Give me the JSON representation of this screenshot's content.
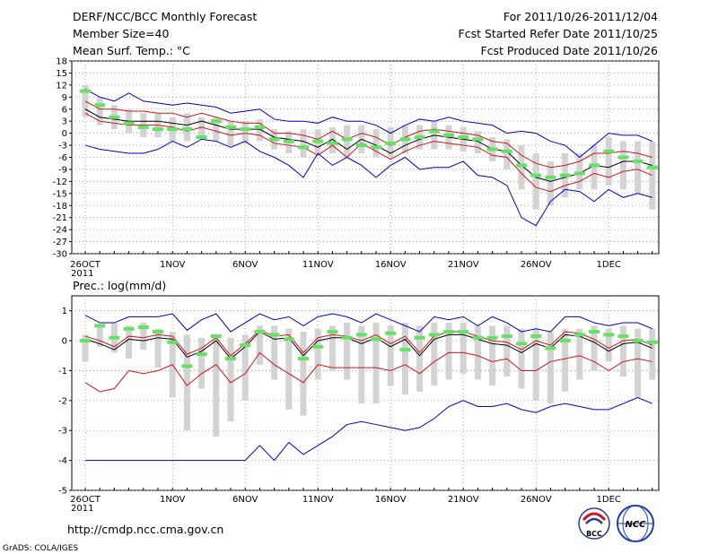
{
  "header": {
    "title": "DERF/NCC/BCC Monthly Forecast",
    "member_size": "Member Size=40",
    "variable": "Mean Surf. Temp.: °C",
    "forecast_period": "For 2011/10/26-2011/12/04",
    "start_date": "Fcst Started Refer Date 2011/10/25",
    "produced_date": "Fcst Produced Date 2011/10/26"
  },
  "footer": {
    "url": "http://cmdp.ncc.cma.gov.cn",
    "grads_label": "GrADS: COLA/IGES",
    "logo_bcc_text": "BCC",
    "logo_ncc_text": "NCC"
  },
  "colors": {
    "box": "#d3d3d3",
    "median": "#66e066",
    "mean": "#000000",
    "inner_band": "#d0141e",
    "outer_band": "#0000c8",
    "grid": "#9a9a9a"
  },
  "chart_data": [
    {
      "type": "line",
      "title": "Mean Surf. Temp.: °C",
      "xlabel": "",
      "ylabel": "",
      "ylim": [
        -30,
        18
      ],
      "yticks": [
        18,
        15,
        12,
        9,
        6,
        3,
        0,
        -3,
        -6,
        -9,
        -12,
        -15,
        -18,
        -21,
        -24,
        -27,
        -30
      ],
      "grid": true,
      "x_tick_labels": [
        "26OCT\n2011",
        "1NOV",
        "6NOV",
        "11NOV",
        "16NOV",
        "21NOV",
        "26NOV",
        "1DEC"
      ],
      "x_tick_days": [
        0,
        6,
        11,
        16,
        21,
        26,
        31,
        36
      ],
      "n_days": 40,
      "series": [
        {
          "name": "mean",
          "color": "#000000",
          "values": [
            6,
            4,
            3.5,
            3,
            3,
            3,
            2.5,
            2,
            3,
            2,
            1,
            1,
            1,
            -1,
            -1.5,
            -2,
            -3.5,
            -1.5,
            -4,
            -1.5,
            -3,
            -5,
            -3,
            -1.5,
            -0.5,
            -1,
            -1.5,
            -2,
            -4,
            -4.5,
            -8,
            -11,
            -12,
            -11,
            -10,
            -8,
            -8.5,
            -7,
            -7,
            -8
          ]
        },
        {
          "name": "upper_inner",
          "color": "#d0141e",
          "values": [
            8,
            6,
            6,
            5.5,
            5.5,
            5,
            5,
            4,
            5,
            4,
            3,
            2.5,
            2.5,
            0,
            0,
            -0.5,
            -1.5,
            0.5,
            -1.5,
            0,
            -1,
            -3,
            -1,
            0.5,
            1,
            0.5,
            0,
            -0.5,
            -2,
            -2.5,
            -5.5,
            -7.5,
            -8.5,
            -8,
            -7,
            -5,
            -5,
            -4.5,
            -5,
            -6
          ]
        },
        {
          "name": "lower_inner",
          "color": "#d0141e",
          "values": [
            5,
            3,
            2.5,
            2,
            2,
            2,
            1.5,
            0.5,
            1.5,
            0.5,
            -0.5,
            0,
            -0.5,
            -2.5,
            -3,
            -3.5,
            -5.5,
            -3,
            -6,
            -2.5,
            -4.5,
            -6.5,
            -4.5,
            -3,
            -2,
            -2.5,
            -3,
            -3.5,
            -5.5,
            -6,
            -10,
            -13.5,
            -14.5,
            -13,
            -12,
            -10,
            -11,
            -9.5,
            -9,
            -10.5
          ]
        },
        {
          "name": "upper_outer",
          "color": "#0000c8",
          "values": [
            11,
            9,
            8,
            10,
            8,
            7.5,
            7,
            7.5,
            7,
            6.5,
            5,
            5.5,
            6,
            3.5,
            3,
            3,
            2.5,
            4,
            3,
            3,
            2,
            0,
            2,
            3.5,
            3,
            4,
            3,
            2.5,
            2,
            0,
            0.5,
            0,
            -2,
            -3,
            -6,
            -3,
            0,
            -0.5,
            -0.5,
            -2
          ]
        },
        {
          "name": "lower_outer",
          "color": "#0000c8",
          "values": [
            -3,
            -4,
            -4.5,
            -5,
            -5,
            -4,
            -2,
            -3.5,
            -1.5,
            -2,
            -3.5,
            -2,
            -4.5,
            -6,
            -8,
            -11,
            -5,
            -8,
            -6,
            -8,
            -11,
            -8,
            -6,
            -9,
            -8.5,
            -8.5,
            -7,
            -10.5,
            -11,
            -13,
            -21,
            -23,
            -17,
            -14,
            -14.5,
            -17,
            -14,
            -16,
            -15,
            -16
          ]
        }
      ],
      "boxes": [
        {
          "day": 0,
          "high": 12,
          "low": 4,
          "median": 10.5
        },
        {
          "day": 1,
          "high": 9,
          "low": 2,
          "median": 7
        },
        {
          "day": 2,
          "high": 7,
          "low": 1,
          "median": 4
        },
        {
          "day": 3,
          "high": 6,
          "low": 0,
          "median": 2.5
        },
        {
          "day": 4,
          "high": 5,
          "low": -1,
          "median": 1.5
        },
        {
          "day": 5,
          "high": 5,
          "low": -1,
          "median": 1
        },
        {
          "day": 6,
          "high": 4,
          "low": -2,
          "median": 1
        },
        {
          "day": 7,
          "high": 5,
          "low": -2,
          "median": 1
        },
        {
          "day": 8,
          "high": 4,
          "low": -1.5,
          "median": -1
        },
        {
          "day": 9,
          "high": 4,
          "low": -2,
          "median": 3
        },
        {
          "day": 10,
          "high": 3,
          "low": -3,
          "median": 1.5
        },
        {
          "day": 11,
          "high": 3,
          "low": -2.5,
          "median": 1
        },
        {
          "day": 12,
          "high": 3.5,
          "low": -2,
          "median": 1.5
        },
        {
          "day": 13,
          "high": 1,
          "low": -4,
          "median": -1.5
        },
        {
          "day": 14,
          "high": 0.5,
          "low": -5,
          "median": -2
        },
        {
          "day": 15,
          "high": 1,
          "low": -6,
          "median": -3.5
        },
        {
          "day": 16,
          "high": 1,
          "low": -5,
          "median": -2
        },
        {
          "day": 17,
          "high": 1.5,
          "low": -5,
          "median": -2.5
        },
        {
          "day": 18,
          "high": 2,
          "low": -6,
          "median": -1.5
        },
        {
          "day": 19,
          "high": 2,
          "low": -5,
          "median": -3
        },
        {
          "day": 20,
          "high": 1,
          "low": -6,
          "median": -3.5
        },
        {
          "day": 21,
          "high": 1.5,
          "low": -6,
          "median": -2.5
        },
        {
          "day": 22,
          "high": 2,
          "low": -5,
          "median": -1.5
        },
        {
          "day": 23,
          "high": 2,
          "low": -4,
          "median": -1
        },
        {
          "day": 24,
          "high": 3,
          "low": -4,
          "median": 0.5
        },
        {
          "day": 25,
          "high": 2,
          "low": -4,
          "median": -0.5
        },
        {
          "day": 26,
          "high": 1.5,
          "low": -4.5,
          "median": -1
        },
        {
          "day": 27,
          "high": 0.5,
          "low": -5,
          "median": -1.5
        },
        {
          "day": 28,
          "high": -1,
          "low": -7,
          "median": -4
        },
        {
          "day": 29,
          "high": -1.5,
          "low": -9,
          "median": -4.5
        },
        {
          "day": 30,
          "high": -3,
          "low": -14,
          "median": -8
        },
        {
          "day": 31,
          "high": -5,
          "low": -19,
          "median": -10.5
        },
        {
          "day": 32,
          "high": -7,
          "low": -18,
          "median": -11
        },
        {
          "day": 33,
          "high": -5,
          "low": -16,
          "median": -10.5
        },
        {
          "day": 34,
          "high": -5,
          "low": -14,
          "median": -10
        },
        {
          "day": 35,
          "high": -3,
          "low": -14,
          "median": -8
        },
        {
          "day": 36,
          "high": -1,
          "low": -13,
          "median": -4.5
        },
        {
          "day": 37,
          "high": -2,
          "low": -14,
          "median": -6
        },
        {
          "day": 38,
          "high": -2,
          "low": -15,
          "median": -7
        },
        {
          "day": 39,
          "high": -2,
          "low": -19,
          "median": -8.5
        }
      ]
    },
    {
      "type": "line",
      "title": "Prec.: log(mm/d)",
      "xlabel": "",
      "ylabel": "",
      "ylim": [
        -5,
        1.5
      ],
      "yticks": [
        1,
        0,
        -1,
        -2,
        -3,
        -4,
        -5
      ],
      "grid": true,
      "x_tick_labels": [
        "26OCT\n2011",
        "1NOV",
        "6NOV",
        "11NOV",
        "16NOV",
        "21NOV",
        "26NOV",
        "1DEC"
      ],
      "x_tick_days": [
        0,
        6,
        11,
        16,
        21,
        26,
        31,
        36
      ],
      "n_days": 40,
      "series": [
        {
          "name": "mean",
          "color": "#000000",
          "values": [
            0.05,
            -0.1,
            -0.3,
            0.05,
            0,
            0.1,
            0.05,
            -0.55,
            -0.35,
            0,
            -0.6,
            -0.2,
            0.3,
            0.05,
            0.1,
            -0.5,
            0,
            0.1,
            0.1,
            -0.1,
            0.1,
            -0.2,
            0.05,
            -0.5,
            0.05,
            0.2,
            0.2,
            0.05,
            -0.1,
            -0.15,
            -0.4,
            -0.1,
            -0.25,
            0.2,
            0.15,
            -0.05,
            -0.35,
            -0.1,
            -0.05,
            -0.25
          ]
        },
        {
          "name": "upper_inner",
          "color": "#d0141e",
          "values": [
            0.15,
            0,
            -0.2,
            0.15,
            0.1,
            0.2,
            0.15,
            -0.45,
            -0.25,
            0.1,
            -0.5,
            -0.1,
            0.35,
            0.15,
            0.2,
            -0.4,
            0.1,
            0.2,
            0.15,
            0,
            0.2,
            -0.1,
            0.15,
            -0.4,
            0.15,
            0.3,
            0.3,
            0.15,
            0,
            -0.05,
            -0.3,
            0,
            -0.15,
            0.3,
            0.25,
            0.05,
            -0.25,
            0,
            0.05,
            -0.15
          ]
        },
        {
          "name": "lower_inner",
          "color": "#d0141e",
          "values": [
            -1.4,
            -1.7,
            -1.6,
            -1,
            -1.1,
            -1,
            -0.8,
            -1.5,
            -1.1,
            -0.8,
            -1.4,
            -1.1,
            -0.4,
            -0.8,
            -1.1,
            -1.4,
            -0.8,
            -0.9,
            -0.9,
            -0.9,
            -0.9,
            -1,
            -0.8,
            -1.1,
            -0.7,
            -0.4,
            -0.4,
            -0.5,
            -0.7,
            -0.6,
            -1,
            -1,
            -0.7,
            -0.6,
            -0.5,
            -0.7,
            -1,
            -0.7,
            -0.6,
            -0.7
          ]
        },
        {
          "name": "upper_outer",
          "color": "#0000c8",
          "values": [
            0.85,
            0.6,
            0.6,
            0.8,
            0.8,
            0.8,
            0.9,
            0.35,
            0.7,
            0.9,
            0.3,
            0.6,
            0.9,
            0.7,
            0.8,
            0.5,
            0.8,
            0.9,
            0.8,
            0.6,
            0.9,
            0.7,
            0.5,
            0.3,
            0.8,
            0.7,
            0.8,
            0.5,
            0.8,
            0.6,
            0.3,
            0.4,
            0.3,
            0.8,
            0.8,
            0.6,
            0.5,
            0.6,
            0.6,
            0.4
          ]
        },
        {
          "name": "lower_outer",
          "color": "#0000c8",
          "values": [
            -4,
            -4,
            -4,
            -4,
            -4,
            -4,
            -4,
            -4,
            -4,
            -4,
            -4,
            -4,
            -3.5,
            -4,
            -3.4,
            -3.8,
            -3.5,
            -3.2,
            -2.8,
            -2.7,
            -2.8,
            -2.9,
            -3,
            -2.9,
            -2.6,
            -2.2,
            -2,
            -2.2,
            -2.2,
            -2.1,
            -2.3,
            -2.4,
            -2.2,
            -2.1,
            -2.2,
            -2.3,
            -2.3,
            -2.1,
            -1.9,
            -2.1
          ]
        }
      ],
      "boxes": [
        {
          "day": 0,
          "high": 0.2,
          "low": -0.7,
          "median": 0
        },
        {
          "day": 1,
          "high": 0.5,
          "low": -0.2,
          "median": 0.5
        },
        {
          "day": 2,
          "high": 0.6,
          "low": -0.4,
          "median": 0.1
        },
        {
          "day": 3,
          "high": 0.5,
          "low": -0.6,
          "median": 0.4
        },
        {
          "day": 4,
          "high": 0.6,
          "low": -0.3,
          "median": 0.45
        },
        {
          "day": 5,
          "high": 0.4,
          "low": -0.9,
          "median": 0.3
        },
        {
          "day": 6,
          "high": 0.3,
          "low": -1.9,
          "median": -0.05
        },
        {
          "day": 7,
          "high": 0.2,
          "low": -3,
          "median": -0.85
        },
        {
          "day": 8,
          "high": 0.1,
          "low": -1.6,
          "median": -0.45
        },
        {
          "day": 9,
          "high": 0.2,
          "low": -3.2,
          "median": 0.15
        },
        {
          "day": 10,
          "high": 0.1,
          "low": -2.7,
          "median": -0.6
        },
        {
          "day": 11,
          "high": 0.2,
          "low": -2,
          "median": -0.15
        },
        {
          "day": 12,
          "high": 0.5,
          "low": -0.8,
          "median": 0.3
        },
        {
          "day": 13,
          "high": 0.5,
          "low": -1.3,
          "median": 0.2
        },
        {
          "day": 14,
          "high": 0.4,
          "low": -2.3,
          "median": 0.05
        },
        {
          "day": 15,
          "high": 0.3,
          "low": -2.5,
          "median": -0.6
        },
        {
          "day": 16,
          "high": 0.4,
          "low": -1.3,
          "median": -0.2
        },
        {
          "day": 17,
          "high": 0.5,
          "low": -1,
          "median": 0.3
        },
        {
          "day": 18,
          "high": 0.6,
          "low": -1.3,
          "median": 0.1
        },
        {
          "day": 19,
          "high": 0.5,
          "low": -2.1,
          "median": 0.2
        },
        {
          "day": 20,
          "high": 0.6,
          "low": -2.1,
          "median": 0.05
        },
        {
          "day": 21,
          "high": 0.5,
          "low": -1.5,
          "median": 0.25
        },
        {
          "day": 22,
          "high": 0.6,
          "low": -1.8,
          "median": -0.3
        },
        {
          "day": 23,
          "high": 0.5,
          "low": -1.7,
          "median": 0.1
        },
        {
          "day": 24,
          "high": 0.6,
          "low": -1.5,
          "median": 0.2
        },
        {
          "day": 25,
          "high": 0.6,
          "low": -1.3,
          "median": 0.3
        },
        {
          "day": 26,
          "high": 0.6,
          "low": -1.1,
          "median": 0.3
        },
        {
          "day": 27,
          "high": 0.5,
          "low": -1.3,
          "median": 0.1
        },
        {
          "day": 28,
          "high": 0.5,
          "low": -1.5,
          "median": 0.1
        },
        {
          "day": 29,
          "high": 0.5,
          "low": -1.2,
          "median": 0.15
        },
        {
          "day": 30,
          "high": 0.4,
          "low": -1.6,
          "median": -0.1
        },
        {
          "day": 31,
          "high": 0.4,
          "low": -2,
          "median": 0.15
        },
        {
          "day": 32,
          "high": 0.3,
          "low": -2.1,
          "median": -0.25
        },
        {
          "day": 33,
          "high": 0.4,
          "low": -1.7,
          "median": 0
        },
        {
          "day": 34,
          "high": 0.4,
          "low": -1.3,
          "median": 0.2
        },
        {
          "day": 35,
          "high": 0.5,
          "low": -1,
          "median": 0.3
        },
        {
          "day": 36,
          "high": 0.4,
          "low": -0.7,
          "median": 0.2
        },
        {
          "day": 37,
          "high": 0.5,
          "low": -1.2,
          "median": 0.15
        },
        {
          "day": 38,
          "high": 0.4,
          "low": -1.9,
          "median": 0
        },
        {
          "day": 39,
          "high": 0.4,
          "low": -1.3,
          "median": -0.05
        }
      ]
    }
  ]
}
